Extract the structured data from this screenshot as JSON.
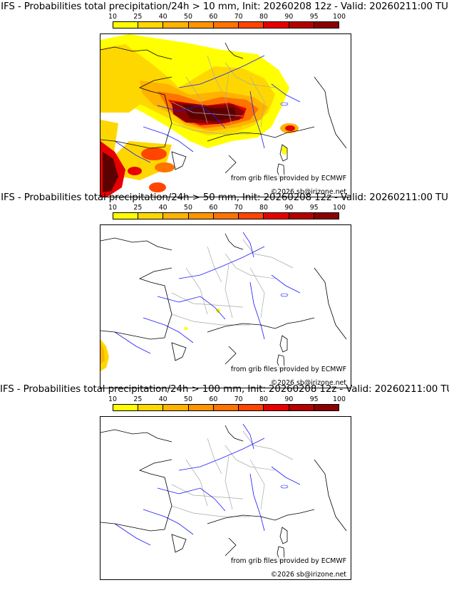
{
  "colorbar": {
    "ticks": [
      "10",
      "25",
      "40",
      "50",
      "60",
      "70",
      "80",
      "90",
      "95",
      "100"
    ],
    "colors": [
      "#ffff00",
      "#ffd700",
      "#ffb300",
      "#ff9400",
      "#ff7300",
      "#ff4500",
      "#e60000",
      "#b40000",
      "#8b0000",
      "#5c0000"
    ]
  },
  "credit": {
    "source": "from grib files provided by ECMWF",
    "copyright": "©2026 sb@irizone.net"
  },
  "colors": {
    "coastline": "#000000",
    "rivers": "#1a1aff",
    "borders": "#a8a8a8"
  },
  "panels": [
    {
      "title": "IFS - Probabilities total precipitation/24h > 10 mm, Init: 20260208 12z - Valid: 20260211:00 TU",
      "threshold_mm": 10
    },
    {
      "title": "IFS - Probabilities total precipitation/24h > 50 mm, Init: 20260208 12z - Valid: 20260211:00 TU",
      "threshold_mm": 50
    },
    {
      "title": "IFS - Probabilities total precipitation/24h > 100 mm, Init: 20260208 12z - Valid: 20260211:00 TU",
      "threshold_mm": 100
    }
  ]
}
